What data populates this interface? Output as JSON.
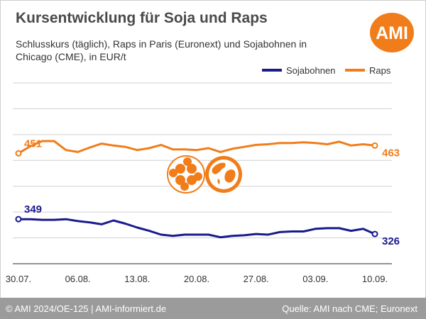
{
  "header": {
    "title": "Kursentwicklung für Soja und Raps",
    "subtitle": "Schlusskurs (täglich), Raps in Paris (Euronext) und Sojabohnen in Chicago (CME), in EUR/t",
    "logo_text": "AMI"
  },
  "footer": {
    "copyright": "© AMI 2024/OE-125 | AMI-informiert.de",
    "source": "Quelle: AMI nach CME; Euronext"
  },
  "colors": {
    "raps": "#f07d1a",
    "soja": "#1a1a8c",
    "grid": "#d0d0d0",
    "axis": "#555555",
    "logo": "#f07d1a"
  },
  "chart_data": {
    "type": "line",
    "title": "Kursentwicklung für Soja und Raps",
    "xlabel": "",
    "ylabel": "",
    "ylim": [
      280,
      560
    ],
    "grid": true,
    "legend_position": "top-right",
    "x": [
      "30.07.",
      "31.07.",
      "01.08.",
      "02.08.",
      "05.08.",
      "06.08.",
      "07.08.",
      "08.08.",
      "09.08.",
      "12.08.",
      "13.08.",
      "14.08.",
      "15.08.",
      "16.08.",
      "19.08.",
      "20.08.",
      "21.08.",
      "22.08.",
      "23.08.",
      "26.08.",
      "27.08.",
      "28.08.",
      "29.08.",
      "30.08.",
      "02.09.",
      "03.09.",
      "04.09.",
      "05.09.",
      "06.09.",
      "09.09.",
      "10.09."
    ],
    "tick_labels": [
      "30.07.",
      "06.08.",
      "13.08.",
      "20.08.",
      "27.08.",
      "03.09.",
      "10.09."
    ],
    "tick_positions": [
      0,
      5,
      10,
      15,
      20,
      25,
      30
    ],
    "series": [
      {
        "name": "Sojabohnen",
        "color": "#1a1a8c",
        "values": [
          349,
          349,
          348,
          348,
          349,
          346,
          344,
          341,
          347,
          342,
          336,
          331,
          325,
          323,
          325,
          325,
          325,
          321,
          323,
          324,
          326,
          325,
          329,
          330,
          330,
          334,
          335,
          335,
          331,
          334,
          326
        ],
        "first_label": "349",
        "last_label": "326"
      },
      {
        "name": "Raps",
        "color": "#f07d1a",
        "values": [
          451,
          462,
          470,
          470,
          456,
          453,
          460,
          466,
          463,
          461,
          456,
          459,
          464,
          457,
          457,
          456,
          459,
          453,
          458,
          461,
          464,
          465,
          467,
          467,
          468,
          467,
          465,
          469,
          463,
          465,
          463
        ],
        "first_label": "451",
        "last_label": "463"
      }
    ]
  }
}
